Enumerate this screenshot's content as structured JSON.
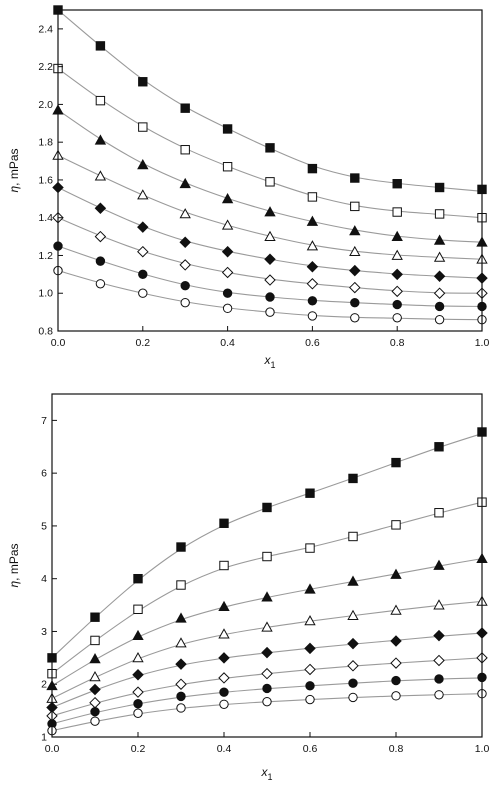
{
  "chart_data": [
    {
      "type": "scatter",
      "panel": "top",
      "xlabel_symbol": "x",
      "xlabel_sub": "1",
      "ylabel_symbol": "η",
      "ylabel_unit": ", mPas",
      "xlim": [
        0,
        1.0
      ],
      "ylim": [
        0.8,
        2.5
      ],
      "xticks": [
        "0.0",
        "0.2",
        "0.4",
        "0.6",
        "0.8",
        "1.0"
      ],
      "yticks": [
        "0.8",
        "1.0",
        "1.2",
        "1.4",
        "1.6",
        "1.8",
        "2.0",
        "2.2",
        "2.4"
      ],
      "x": [
        0,
        0.1,
        0.2,
        0.3,
        0.4,
        0.5,
        0.6,
        0.7,
        0.8,
        0.9,
        1.0
      ],
      "series": [
        {
          "marker": "filled-square",
          "values": [
            2.5,
            2.31,
            2.12,
            1.98,
            1.87,
            1.77,
            1.66,
            1.61,
            1.58,
            1.56,
            1.55
          ],
          "fit_end": 1.54
        },
        {
          "marker": "open-square",
          "values": [
            2.19,
            2.02,
            1.88,
            1.76,
            1.67,
            1.59,
            1.51,
            1.46,
            1.43,
            1.42,
            1.4
          ],
          "fit_end": 1.4
        },
        {
          "marker": "filled-triangle",
          "values": [
            1.97,
            1.81,
            1.68,
            1.58,
            1.5,
            1.43,
            1.38,
            1.33,
            1.3,
            1.28,
            1.27
          ],
          "fit_end": 1.27
        },
        {
          "marker": "open-triangle",
          "values": [
            1.73,
            1.62,
            1.52,
            1.42,
            1.36,
            1.3,
            1.25,
            1.22,
            1.2,
            1.19,
            1.18
          ],
          "fit_end": 1.18
        },
        {
          "marker": "filled-diamond",
          "values": [
            1.56,
            1.45,
            1.35,
            1.27,
            1.22,
            1.18,
            1.14,
            1.12,
            1.1,
            1.09,
            1.08
          ],
          "fit_end": 1.08
        },
        {
          "marker": "open-diamond",
          "values": [
            1.4,
            1.3,
            1.22,
            1.15,
            1.11,
            1.07,
            1.05,
            1.03,
            1.01,
            1.0,
            1.0
          ],
          "fit_end": 1.0
        },
        {
          "marker": "filled-circle",
          "values": [
            1.25,
            1.17,
            1.1,
            1.04,
            1.0,
            0.98,
            0.96,
            0.95,
            0.94,
            0.93,
            0.93
          ],
          "fit_end": 0.93
        },
        {
          "marker": "open-circle",
          "values": [
            1.12,
            1.05,
            1.0,
            0.95,
            0.92,
            0.9,
            0.88,
            0.87,
            0.87,
            0.86,
            0.86
          ],
          "fit_end": 0.86
        }
      ]
    },
    {
      "type": "scatter",
      "panel": "bottom",
      "xlabel_symbol": "x",
      "xlabel_sub": "1",
      "ylabel_symbol": "η",
      "ylabel_unit": ", mPas",
      "xlim": [
        0,
        1.0
      ],
      "ylim": [
        1,
        7.5
      ],
      "xticks": [
        "0.0",
        "0.2",
        "0.4",
        "0.6",
        "0.8",
        "1.0"
      ],
      "yticks": [
        "1",
        "2",
        "3",
        "4",
        "5",
        "6",
        "7"
      ],
      "x": [
        0,
        0.1,
        0.2,
        0.3,
        0.4,
        0.5,
        0.6,
        0.7,
        0.8,
        0.9,
        1.0
      ],
      "series": [
        {
          "marker": "filled-square",
          "values": [
            2.5,
            3.27,
            4.0,
            4.6,
            5.05,
            5.35,
            5.62,
            5.9,
            6.2,
            6.5,
            6.78
          ],
          "fit_end": 6.75
        },
        {
          "marker": "open-square",
          "values": [
            2.2,
            2.83,
            3.42,
            3.88,
            4.25,
            4.42,
            4.58,
            4.8,
            5.02,
            5.25,
            5.45
          ],
          "fit_end": 5.45
        },
        {
          "marker": "filled-triangle",
          "values": [
            1.97,
            2.48,
            2.92,
            3.25,
            3.47,
            3.65,
            3.8,
            3.95,
            4.08,
            4.25,
            4.38
          ],
          "fit_end": 4.38
        },
        {
          "marker": "open-triangle",
          "values": [
            1.73,
            2.14,
            2.5,
            2.78,
            2.95,
            3.08,
            3.2,
            3.3,
            3.4,
            3.5,
            3.57
          ],
          "fit_end": 3.57
        },
        {
          "marker": "filled-diamond",
          "values": [
            1.56,
            1.9,
            2.18,
            2.38,
            2.5,
            2.6,
            2.68,
            2.77,
            2.82,
            2.92,
            2.97
          ],
          "fit_end": 2.97
        },
        {
          "marker": "open-diamond",
          "values": [
            1.4,
            1.65,
            1.85,
            2.0,
            2.12,
            2.2,
            2.28,
            2.35,
            2.4,
            2.45,
            2.5
          ],
          "fit_end": 2.5
        },
        {
          "marker": "filled-circle",
          "values": [
            1.25,
            1.48,
            1.63,
            1.77,
            1.85,
            1.92,
            1.97,
            2.02,
            2.07,
            2.1,
            2.13
          ],
          "fit_end": 2.12
        },
        {
          "marker": "open-circle",
          "values": [
            1.12,
            1.3,
            1.45,
            1.55,
            1.62,
            1.67,
            1.71,
            1.75,
            1.78,
            1.8,
            1.82
          ],
          "fit_end": 1.82
        }
      ]
    }
  ]
}
